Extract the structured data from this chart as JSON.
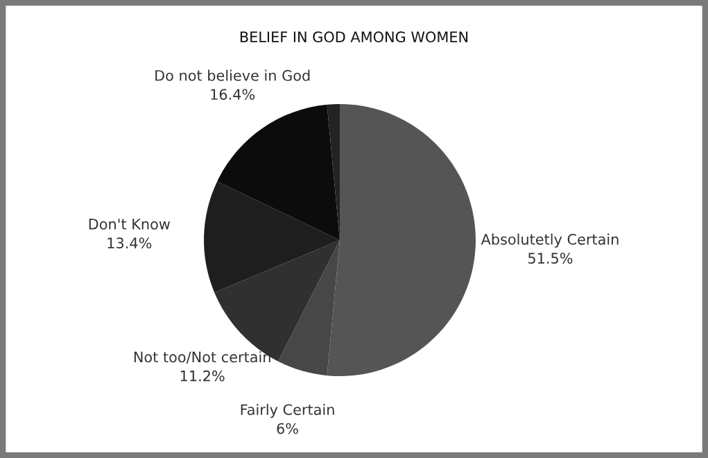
{
  "chart_data": {
    "type": "pie",
    "title": "BELIEF IN GOD AMONG WOMEN",
    "categories": [
      "Absolutetly Certain",
      "Fairly Certain",
      "Not too/Not certain",
      "Don't Know",
      "Do not believe in God",
      null
    ],
    "values": [
      51.5,
      6,
      11.2,
      13.4,
      16.4,
      1.5
    ],
    "value_labels": [
      "51.5%",
      "6%",
      "11.2%",
      "13.4%",
      "16.4%",
      null
    ],
    "colors": [
      "#555555",
      "#474747",
      "#303030",
      "#1e1e1e",
      "#0c0c0c",
      "#232323"
    ]
  }
}
